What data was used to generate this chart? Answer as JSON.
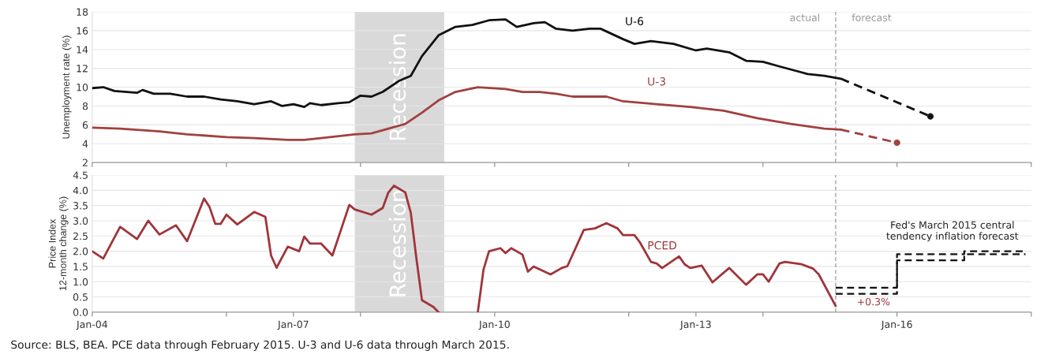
{
  "chart_data": [
    {
      "type": "line",
      "ylabel": "Unemployment rate (%)",
      "xlim": [
        "2004-01",
        "2018-01"
      ],
      "ylim": [
        2,
        18
      ],
      "yticks": [
        2,
        4,
        6,
        8,
        10,
        12,
        14,
        16,
        18
      ],
      "xticks": [
        {
          "value": "2004-01",
          "label": null
        },
        {
          "value": "2006-01",
          "label": null
        },
        {
          "value": "2008-01",
          "label": null
        },
        {
          "value": "2010-01",
          "label": null
        },
        {
          "value": "2012-01",
          "label": null
        },
        {
          "value": "2014-01",
          "label": null
        },
        {
          "value": "2016-01",
          "label": null
        },
        {
          "value": "2018-01",
          "label": null
        }
      ],
      "tick_labels": "y",
      "grid": "y",
      "bands": [
        {
          "axis": "x",
          "from": "2007-12",
          "to": "2009-04",
          "label": "Recession",
          "color": "#d9d9d9"
        }
      ],
      "ref_lines": [
        {
          "axis": "x",
          "value": "2015-02",
          "label": null,
          "color": "#999999",
          "line_style": "dashed"
        }
      ],
      "annotations": [
        "actual",
        "forecast"
      ],
      "series": [
        {
          "name": "U-6",
          "color": "#111111",
          "x": [
            "2004-01",
            "2004-03",
            "2004-05",
            "2004-09",
            "2004-10",
            "2004-12",
            "2005-03",
            "2005-06",
            "2005-09",
            "2005-12",
            "2006-03",
            "2006-06",
            "2006-09",
            "2006-11",
            "2007-01",
            "2007-03",
            "2007-04",
            "2007-06",
            "2007-09",
            "2007-11",
            "2008-01",
            "2008-03",
            "2008-05",
            "2008-08",
            "2008-10",
            "2008-12",
            "2009-03",
            "2009-06",
            "2009-09",
            "2009-12",
            "2010-03",
            "2010-05",
            "2010-08",
            "2010-10",
            "2010-12",
            "2011-03",
            "2011-06",
            "2011-08",
            "2011-12",
            "2012-02",
            "2012-05",
            "2012-09",
            "2013-01",
            "2013-03",
            "2013-07",
            "2013-10",
            "2014-01",
            "2014-04",
            "2014-09",
            "2014-12",
            "2015-03"
          ],
          "values": [
            9.9,
            10.0,
            9.6,
            9.4,
            9.7,
            9.3,
            9.3,
            9.0,
            9.0,
            8.7,
            8.5,
            8.2,
            8.5,
            8.0,
            8.2,
            7.9,
            8.3,
            8.1,
            8.3,
            8.4,
            9.1,
            9.0,
            9.5,
            10.7,
            11.2,
            13.3,
            15.5,
            16.4,
            16.6,
            17.1,
            17.2,
            16.4,
            16.8,
            16.9,
            16.2,
            16.0,
            16.2,
            16.2,
            15.1,
            14.6,
            14.9,
            14.6,
            13.9,
            14.1,
            13.7,
            12.8,
            12.7,
            12.2,
            11.4,
            11.2,
            10.9
          ]
        },
        {
          "name": "U-3",
          "color": "#a0413f",
          "x": [
            "2004-01",
            "2004-06",
            "2005-01",
            "2005-06",
            "2006-01",
            "2006-06",
            "2006-12",
            "2007-03",
            "2007-06",
            "2007-12",
            "2008-03",
            "2008-06",
            "2008-09",
            "2008-12",
            "2009-03",
            "2009-06",
            "2009-10",
            "2010-03",
            "2010-06",
            "2010-09",
            "2010-12",
            "2011-03",
            "2011-09",
            "2011-12",
            "2012-06",
            "2012-12",
            "2013-06",
            "2013-12",
            "2014-06",
            "2014-12",
            "2015-03"
          ],
          "values": [
            5.7,
            5.6,
            5.3,
            5.0,
            4.7,
            4.6,
            4.4,
            4.4,
            4.6,
            5.0,
            5.1,
            5.6,
            6.1,
            7.3,
            8.6,
            9.5,
            10.0,
            9.8,
            9.5,
            9.5,
            9.3,
            9.0,
            9.0,
            8.5,
            8.2,
            7.9,
            7.5,
            6.7,
            6.1,
            5.6,
            5.5
          ]
        },
        {
          "color": "#111111",
          "line_style": "dashed",
          "x": [
            "2015-03",
            "2016-07"
          ],
          "values": [
            10.9,
            6.9
          ]
        },
        {
          "type": "scatter",
          "marker": "circle",
          "color": "#111111",
          "x": [
            "2016-07"
          ],
          "values": [
            6.9
          ]
        },
        {
          "color": "#a0413f",
          "line_style": "dashed",
          "x": [
            "2015-03",
            "2016-01"
          ],
          "values": [
            5.5,
            4.1
          ]
        },
        {
          "type": "scatter",
          "marker": "circle",
          "color": "#a0413f",
          "x": [
            "2016-01"
          ],
          "values": [
            4.1
          ]
        }
      ]
    },
    {
      "type": "line",
      "ylabel": "Price Index\n12-month change (%)",
      "xlim": [
        "2004-01",
        "2018-01"
      ],
      "ylim": [
        0,
        4.5
      ],
      "yticks": [
        {
          "value": 0,
          "label": "0.0"
        },
        0.5,
        {
          "value": 1,
          "label": "1.0"
        },
        1.5,
        {
          "value": 2,
          "label": "2.0"
        },
        2.5,
        {
          "value": 3,
          "label": "3.0"
        },
        3.5,
        {
          "value": 4,
          "label": "4.0"
        },
        4.5
      ],
      "xticks": [
        {
          "value": "2004-01",
          "label": "Jan-04"
        },
        {
          "value": "2006-01",
          "label": null
        },
        {
          "value": "2007-01",
          "label": "Jan-07"
        },
        {
          "value": "2008-01",
          "label": null
        },
        {
          "value": "2010-01",
          "label": "Jan-10"
        },
        {
          "value": "2012-01",
          "label": null
        },
        {
          "value": "2013-01",
          "label": "Jan-13"
        },
        {
          "value": "2014-01",
          "label": null
        },
        {
          "value": "2016-01",
          "label": "Jan-16"
        },
        {
          "value": "2018-01",
          "label": null
        }
      ],
      "grid": "y",
      "bands": [
        {
          "axis": "x",
          "from": "2007-12",
          "to": "2009-04",
          "label": "Recession",
          "color": "#d9d9d9"
        }
      ],
      "ref_lines": [
        {
          "axis": "x",
          "value": "2015-02",
          "label": null,
          "color": "#999999",
          "line_style": "dashed"
        }
      ],
      "annotations": [
        "+0.3%",
        "Fed's March 2015 central\ntendency inflation forecast",
        "Source: BLS, BEA. PCE data through February 2015. U-3 and U-6 data through March 2015."
      ],
      "series": [
        {
          "name": "PCED",
          "color": "#a0343a",
          "x": [
            "2004-01",
            "2004-03",
            "2004-06",
            "2004-09",
            "2004-11",
            "2005-01",
            "2005-04",
            "2005-06",
            "2005-09",
            "2005-10",
            "2005-11",
            "2005-12",
            "2006-01",
            "2006-03",
            "2006-06",
            "2006-08",
            "2006-09",
            "2006-10",
            "2006-12",
            "2007-02",
            "2007-03",
            "2007-04",
            "2007-06",
            "2007-08",
            "2007-11",
            "2007-12",
            "2008-03",
            "2008-05",
            "2008-06",
            "2008-07",
            "2008-09",
            "2008-10",
            "2008-11",
            "2008-12",
            "2009-02",
            "2009-03",
            "2009-06",
            "2009-10",
            "2009-11",
            "2009-12",
            "2010-02",
            "2010-03",
            "2010-04",
            "2010-06",
            "2010-07",
            "2010-08",
            "2010-11",
            "2011-01",
            "2011-02",
            "2011-05",
            "2011-07",
            "2011-09",
            "2011-11",
            "2011-12",
            "2012-02",
            "2012-03",
            "2012-05",
            "2012-06",
            "2012-07",
            "2012-10",
            "2012-11",
            "2012-12",
            "2013-02",
            "2013-04",
            "2013-07",
            "2013-10",
            "2013-12",
            "2014-01",
            "2014-02",
            "2014-04",
            "2014-05",
            "2014-08",
            "2014-10",
            "2014-11",
            "2015-02"
          ],
          "values": [
            2.0,
            1.76,
            2.8,
            2.4,
            3.0,
            2.55,
            2.85,
            2.33,
            3.73,
            3.45,
            2.9,
            2.9,
            3.2,
            2.88,
            3.29,
            3.13,
            1.86,
            1.46,
            2.15,
            2.0,
            2.48,
            2.25,
            2.25,
            1.86,
            3.52,
            3.37,
            3.2,
            3.42,
            3.93,
            4.15,
            3.93,
            3.26,
            1.74,
            0.39,
            0.17,
            0.0,
            null,
            0.0,
            1.4,
            2.0,
            2.1,
            1.94,
            2.1,
            1.89,
            1.33,
            1.5,
            1.24,
            1.45,
            1.51,
            2.7,
            2.75,
            2.92,
            2.75,
            2.53,
            2.53,
            2.3,
            1.65,
            1.6,
            1.45,
            1.83,
            1.57,
            1.45,
            1.53,
            0.98,
            1.45,
            0.9,
            1.24,
            1.24,
            1.0,
            1.6,
            1.65,
            1.57,
            1.43,
            1.24,
            0.2
          ]
        },
        {
          "type": "step",
          "color": "#111111",
          "line_style": "dashed",
          "x": [
            "2015-02",
            "2016-01",
            "2017-01",
            "2017-12"
          ],
          "values": [
            0.6,
            1.7,
            1.9,
            1.9
          ]
        },
        {
          "type": "step",
          "color": "#111111",
          "line_style": "dashed",
          "x": [
            "2015-02",
            "2016-01",
            "2017-01",
            "2017-12"
          ],
          "values": [
            0.8,
            1.9,
            2.0,
            2.0
          ]
        }
      ]
    }
  ]
}
